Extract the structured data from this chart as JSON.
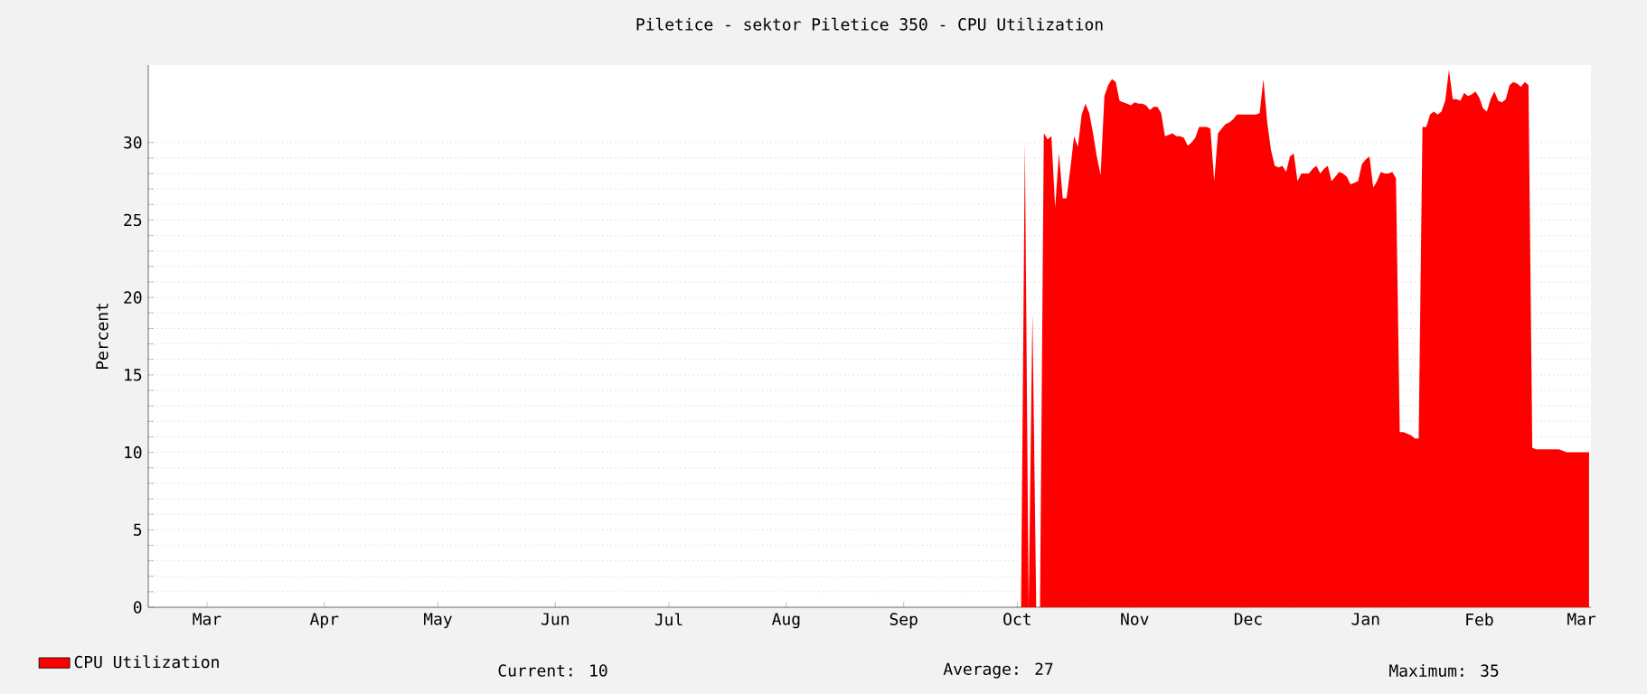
{
  "chart_data": {
    "type": "area",
    "title": "Piletice - sektor Piletice 350 - CPU Utilization",
    "ylabel": "Percent",
    "categories": [
      null,
      null,
      null,
      null,
      null,
      null,
      null,
      null,
      null,
      null,
      null,
      null,
      null,
      null,
      null,
      "Mar",
      null,
      null,
      null,
      null,
      null,
      null,
      null,
      null,
      null,
      null,
      null,
      null,
      null,
      null,
      null,
      null,
      null,
      null,
      null,
      null,
      null,
      null,
      null,
      null,
      null,
      null,
      null,
      null,
      null,
      null,
      "Apr",
      null,
      null,
      null,
      null,
      null,
      null,
      null,
      null,
      null,
      null,
      null,
      null,
      null,
      null,
      null,
      null,
      null,
      null,
      null,
      null,
      null,
      null,
      null,
      null,
      null,
      null,
      null,
      null,
      null,
      "May",
      null,
      null,
      null,
      null,
      null,
      null,
      null,
      null,
      null,
      null,
      null,
      null,
      null,
      null,
      null,
      null,
      null,
      null,
      null,
      null,
      null,
      null,
      null,
      null,
      null,
      null,
      null,
      null,
      null,
      null,
      "Jun",
      null,
      null,
      null,
      null,
      null,
      null,
      null,
      null,
      null,
      null,
      null,
      null,
      null,
      null,
      null,
      null,
      null,
      null,
      null,
      null,
      null,
      null,
      null,
      null,
      null,
      null,
      null,
      null,
      null,
      "Jul",
      null,
      null,
      null,
      null,
      null,
      null,
      null,
      null,
      null,
      null,
      null,
      null,
      null,
      null,
      null,
      null,
      null,
      null,
      null,
      null,
      null,
      null,
      null,
      null,
      null,
      null,
      null,
      null,
      null,
      null,
      "Aug",
      null,
      null,
      null,
      null,
      null,
      null,
      null,
      null,
      null,
      null,
      null,
      null,
      null,
      null,
      null,
      null,
      null,
      null,
      null,
      null,
      null,
      null,
      null,
      null,
      null,
      null,
      null,
      null,
      null,
      null,
      "Sep",
      null,
      null,
      null,
      null,
      null,
      null,
      null,
      null,
      null,
      null,
      null,
      null,
      null,
      null,
      null,
      null,
      null,
      null,
      null,
      null,
      null,
      null,
      null,
      null,
      null,
      null,
      null,
      null,
      null,
      "Oct",
      null,
      null,
      null,
      null,
      null,
      null,
      null,
      null,
      null,
      null,
      null,
      null,
      null,
      null,
      null,
      null,
      null,
      null,
      null,
      null,
      null,
      null,
      null,
      null,
      null,
      null,
      null,
      null,
      null,
      null,
      "Nov",
      null,
      null,
      null,
      null,
      null,
      null,
      null,
      null,
      null,
      null,
      null,
      null,
      null,
      null,
      null,
      null,
      null,
      null,
      null,
      null,
      null,
      null,
      null,
      null,
      null,
      null,
      null,
      null,
      null,
      "Dec",
      null,
      null,
      null,
      null,
      null,
      null,
      null,
      null,
      null,
      null,
      null,
      null,
      null,
      null,
      null,
      null,
      null,
      null,
      null,
      null,
      null,
      null,
      null,
      null,
      null,
      null,
      null,
      null,
      null,
      null,
      "Jan",
      null,
      null,
      null,
      null,
      null,
      null,
      null,
      null,
      null,
      null,
      null,
      null,
      null,
      null,
      null,
      null,
      null,
      null,
      null,
      null,
      null,
      null,
      null,
      null,
      null,
      null,
      null,
      null,
      null,
      "Feb",
      null,
      null,
      null,
      null,
      null,
      null,
      null,
      null,
      null,
      null,
      null,
      null,
      null,
      null,
      null,
      null,
      null,
      null,
      null,
      null,
      null,
      null,
      null,
      null,
      null,
      null,
      "Mar",
      null,
      null
    ],
    "series": [
      {
        "name": "CPU Utilization",
        "color": "#ff0000",
        "values": [
          null,
          null,
          null,
          null,
          null,
          null,
          null,
          null,
          null,
          null,
          null,
          null,
          null,
          null,
          null,
          null,
          null,
          null,
          null,
          null,
          null,
          null,
          null,
          null,
          null,
          null,
          null,
          null,
          null,
          null,
          null,
          null,
          null,
          null,
          null,
          null,
          null,
          null,
          null,
          null,
          null,
          null,
          null,
          null,
          null,
          null,
          null,
          null,
          null,
          null,
          null,
          null,
          null,
          null,
          null,
          null,
          null,
          null,
          null,
          null,
          null,
          null,
          null,
          null,
          null,
          null,
          null,
          null,
          null,
          null,
          null,
          null,
          null,
          null,
          null,
          null,
          null,
          null,
          null,
          null,
          null,
          null,
          null,
          null,
          null,
          null,
          null,
          null,
          null,
          null,
          null,
          null,
          null,
          null,
          null,
          null,
          null,
          null,
          null,
          null,
          null,
          null,
          null,
          null,
          null,
          null,
          null,
          null,
          null,
          null,
          null,
          null,
          null,
          null,
          null,
          null,
          null,
          null,
          null,
          null,
          null,
          null,
          null,
          null,
          null,
          null,
          null,
          null,
          null,
          null,
          null,
          null,
          null,
          null,
          null,
          null,
          null,
          null,
          null,
          null,
          null,
          null,
          null,
          null,
          null,
          null,
          null,
          null,
          null,
          null,
          null,
          null,
          null,
          null,
          null,
          null,
          null,
          null,
          null,
          null,
          null,
          null,
          null,
          null,
          null,
          null,
          null,
          null,
          null,
          null,
          null,
          null,
          null,
          null,
          null,
          null,
          null,
          null,
          null,
          null,
          null,
          null,
          null,
          null,
          null,
          null,
          null,
          null,
          null,
          null,
          null,
          null,
          null,
          null,
          null,
          null,
          null,
          null,
          null,
          null,
          null,
          null,
          null,
          null,
          null,
          null,
          null,
          null,
          null,
          null,
          null,
          null,
          null,
          null,
          null,
          null,
          null,
          null,
          null,
          null,
          null,
          null,
          null,
          null,
          null,
          null,
          null,
          null,
          null,
          null,
          0,
          30.0,
          0,
          19.0,
          0,
          0,
          30.6,
          30.2,
          30.4,
          25.8,
          29.3,
          26.4,
          26.4,
          28.3,
          30.4,
          29.7,
          31.8,
          32.5,
          31.9,
          30.6,
          29.1,
          27.9,
          33.0,
          33.7,
          34.1,
          33.9,
          32.7,
          32.6,
          32.5,
          32.4,
          32.6,
          32.5,
          32.5,
          32.4,
          32.1,
          32.3,
          32.3,
          31.9,
          30.4,
          30.5,
          30.6,
          30.4,
          30.4,
          30.3,
          29.8,
          30.0,
          30.3,
          31.0,
          31.0,
          31.0,
          30.9,
          27.5,
          30.6,
          30.9,
          31.2,
          31.3,
          31.5,
          31.8,
          31.8,
          31.8,
          31.8,
          31.8,
          31.8,
          31.9,
          34.1,
          31.3,
          29.5,
          28.5,
          28.4,
          28.5,
          28.1,
          29.1,
          29.3,
          27.5,
          28.0,
          28.0,
          28.0,
          28.3,
          28.5,
          28.0,
          28.3,
          28.5,
          27.5,
          27.8,
          28.1,
          28.0,
          27.8,
          27.3,
          27.4,
          27.5,
          28.6,
          28.9,
          29.1,
          27.1,
          27.5,
          28.1,
          28.0,
          28.0,
          28.1,
          27.7,
          11.3,
          11.3,
          11.2,
          11.1,
          10.9,
          10.9,
          31.0,
          31.0,
          31.8,
          32.0,
          31.8,
          32.0,
          32.7,
          34.7,
          32.8,
          32.8,
          32.7,
          33.2,
          33.0,
          33.1,
          33.3,
          32.9,
          32.2,
          32.0,
          32.8,
          33.3,
          32.7,
          32.6,
          32.8,
          33.7,
          33.9,
          33.8,
          33.6,
          33.9,
          33.7,
          10.3,
          10.2,
          10.2,
          10.2,
          10.2,
          10.2,
          10.2,
          10.2,
          10.1,
          10.0,
          10.0,
          10.0,
          10.0,
          10.0,
          10.0,
          10.0
        ]
      }
    ],
    "ylim": [
      0,
      35
    ],
    "yticks": [
      0,
      5,
      10,
      15,
      20,
      25,
      30
    ],
    "grid": "y",
    "legend": "bottom left",
    "annotations": [
      "Current: 10",
      "Average: 27",
      "Maximum: 35"
    ]
  }
}
